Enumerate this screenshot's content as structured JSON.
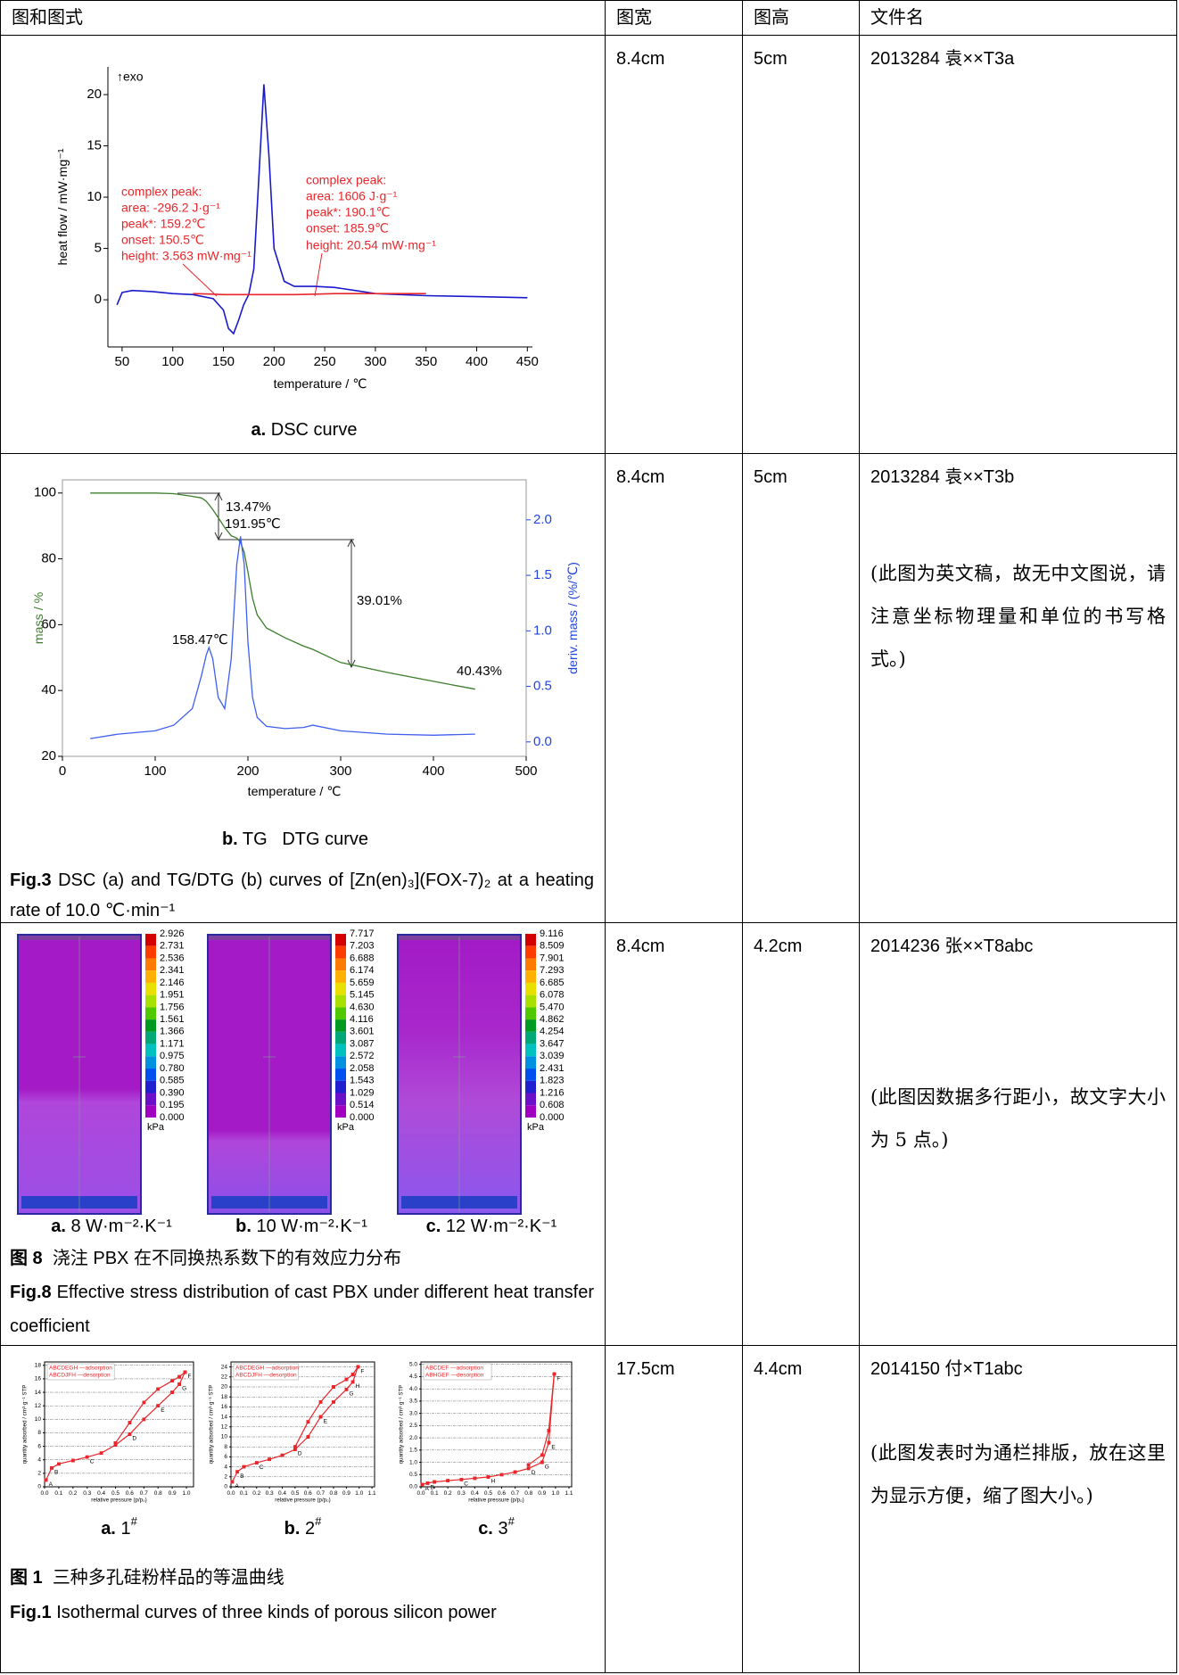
{
  "header": [
    "图和图式",
    "图宽",
    "图高",
    "文件名"
  ],
  "rows": [
    {
      "figure": {
        "type": "line",
        "xlabel": "temperature / ℃",
        "ylabel": "heat flow / mW·mg⁻¹",
        "xlim": [
          36,
          455
        ],
        "xticks": [
          50,
          100,
          150,
          200,
          250,
          300,
          350,
          400,
          450
        ],
        "ylim": [
          -4.6,
          22.7
        ],
        "yticks": [
          0,
          5,
          10,
          15,
          20
        ],
        "x": [
          45,
          50,
          60,
          80,
          100,
          120,
          140,
          150,
          155,
          160,
          165,
          170,
          175,
          180,
          185,
          190,
          195,
          200,
          210,
          220,
          240,
          260,
          280,
          300,
          350,
          400,
          450
        ],
        "series": [
          {
            "color": "#1a1acd",
            "values": [
              -0.5,
              0.7,
              0.9,
              0.8,
              0.6,
              0.5,
              0.1,
              -1,
              -2.8,
              -3.3,
              -2,
              -0.5,
              0.5,
              3,
              12,
              21,
              14,
              5,
              1.8,
              1.3,
              1.3,
              1.2,
              0.9,
              0.6,
              0.4,
              0.3,
              0.2
            ]
          },
          {
            "color": "#e8262b",
            "values": [
              null,
              null,
              null,
              null,
              null,
              0.6,
              0.55,
              0.5,
              0.5,
              0.5,
              0.5,
              0.5,
              0.5,
              0.5,
              0.5,
              0.5,
              0.5,
              0.5,
              0.5,
              0.5,
              0.55,
              0.6,
              0.6,
              0.6,
              0.6,
              null,
              null
            ]
          }
        ],
        "annotations": {
          "exo": "↑exo",
          "left": [
            "complex peak:",
            "area: -296.2 J·g⁻¹",
            "peak*: 159.2℃",
            "onset: 150.5℃",
            "height: 3.563 mW·mg⁻¹"
          ],
          "right": [
            "complex peak:",
            "area: 1606 J·g⁻¹",
            "peak*: 190.1℃",
            "onset: 185.9℃",
            "height: 20.54 mW·mg⁻¹"
          ]
        },
        "caption_label": "a.",
        "caption": "DSC curve"
      },
      "width": "8.4cm",
      "height": "5cm",
      "file": "2013284 袁××T3a"
    },
    {
      "figure": {
        "type": "line",
        "xlabel": "temperature / ℃",
        "ylabel": "mass / %",
        "y2label": "deriv. mass / (%/℃)",
        "xlim": [
          0,
          500
        ],
        "xticks": [
          0,
          100,
          200,
          300,
          400,
          500
        ],
        "ylim": [
          20,
          104
        ],
        "yticks": [
          20,
          40,
          60,
          80,
          100
        ],
        "y2lim": [
          -0.13,
          2.36
        ],
        "y2ticks": [
          {
            "value": 0,
            "label": "0.0"
          },
          0.5,
          {
            "value": 1,
            "label": "1.0"
          },
          1.5,
          {
            "value": 2,
            "label": "2.0"
          }
        ],
        "x": [
          30,
          60,
          100,
          120,
          140,
          150,
          155,
          158,
          162,
          168,
          175,
          182,
          188,
          192,
          196,
          200,
          205,
          210,
          220,
          240,
          260,
          270,
          300,
          350,
          400,
          445
        ],
        "series": [
          {
            "color": "#3c7d2c",
            "values": [
              100,
              100,
              100,
              99.8,
              99,
              98.5,
              97.5,
              96.5,
              95,
              92.5,
              89.5,
              87,
              86.3,
              85,
              82,
              76,
              68,
              63,
              59,
              56,
              53.5,
              52.5,
              48.5,
              45.5,
              42.8,
              40.4
            ]
          },
          {
            "color": "#3f5ff0",
            "axis": "y2",
            "values": [
              0.03,
              0.07,
              0.1,
              0.15,
              0.3,
              0.6,
              0.78,
              0.85,
              0.75,
              0.4,
              0.3,
              0.75,
              1.6,
              1.85,
              1.6,
              0.9,
              0.4,
              0.22,
              0.14,
              0.12,
              0.13,
              0.15,
              0.1,
              0.07,
              0.06,
              0.07
            ]
          }
        ],
        "annotations": [
          "13.47%",
          "191.95℃",
          "39.01%",
          "158.47℃",
          "40.43%"
        ],
        "caption_label": "b.",
        "caption": "TG   DTG curve"
      },
      "fig_caption": {
        "label": "Fig.3",
        "text": "DSC (a) and TG/DTG (b) curves of [Zn(en)₃](FOX-7)₂ at a heating rate of 10.0 ℃·min⁻¹"
      },
      "width": "8.4cm",
      "height": "5cm",
      "file": "2013284 袁××T3b",
      "note": "(此图为英文稿，故无中文图说，请注意坐标物理量和单位的书写格式。)"
    },
    {
      "figure": {
        "type": "contour",
        "colors": [
          "#d40000",
          "#ff3c00",
          "#ff7a00",
          "#ffb000",
          "#e8e000",
          "#a8e000",
          "#50c800",
          "#009a20",
          "#00a878",
          "#00c0c0",
          "#0090e0",
          "#0050f0",
          "#2020d0",
          "#6a10c8",
          "#a000c0"
        ],
        "panels": [
          {
            "labels": [
              "2.926",
              "2.731",
              "2.536",
              "2.341",
              "2.146",
              "1.951",
              "1.756",
              "1.561",
              "1.366",
              "1.171",
              "0.975",
              "0.780",
              "0.585",
              "0.390",
              "0.195",
              "0.000"
            ],
            "unit": "kPa",
            "caption_label": "a.",
            "caption": "8 W·m⁻²·K⁻¹"
          },
          {
            "labels": [
              "7.717",
              "7.203",
              "6.688",
              "6.174",
              "5.659",
              "5.145",
              "4.630",
              "4.116",
              "3.601",
              "3.087",
              "2.572",
              "2.058",
              "1.543",
              "1.029",
              "0.514",
              "0.000"
            ],
            "unit": "kPa",
            "caption_label": "b.",
            "caption": "10 W·m⁻²·K⁻¹"
          },
          {
            "labels": [
              "9.116",
              "8.509",
              "7.901",
              "7.293",
              "6.685",
              "6.078",
              "5.470",
              "4.862",
              "4.254",
              "3.647",
              "3.039",
              "2.431",
              "1.823",
              "1.216",
              "0.608",
              "0.000"
            ],
            "unit": "kPa",
            "caption_label": "c.",
            "caption": "12 W·m⁻²·K⁻¹"
          }
        ]
      },
      "cn_caption": {
        "label": "图 8",
        "text": "浇注 PBX 在不同换热系数下的有效应力分布"
      },
      "fig_caption": {
        "label": "Fig.8",
        "text": "Effective stress distribution of cast PBX under different heat transfer coefficient"
      },
      "width": "8.4cm",
      "height": "4.2cm",
      "file": "2014236 张××T8abc",
      "note": "(此图因数据多行距小，故文字大小为 5 点。)"
    },
    {
      "figure": {
        "charts": [
          {
            "type": "line",
            "grid": true,
            "xlabel": "relative pressure (p/p₀)",
            "ylabel": "quantity adsorbed / cm³·g⁻¹ STP",
            "xlim": [
              0,
              1.05
            ],
            "xticks": [
              {
                "value": 0,
                "label": "0.0"
              },
              0.1,
              0.2,
              0.3,
              0.4,
              0.5,
              0.6,
              0.7,
              0.8,
              0.9,
              {
                "value": 1,
                "label": "1.0"
              }
            ],
            "ylim": [
              0,
              18.5
            ],
            "yticks": [
              0,
              2,
              4,
              6,
              8,
              10,
              12,
              14,
              16,
              18
            ],
            "x": [
              0.01,
              0.05,
              0.1,
              0.2,
              0.3,
              0.4,
              0.5,
              0.6,
              0.7,
              0.8,
              0.9,
              0.95,
              0.99
            ],
            "series": [
              {
                "name": "ABCDEGH —adsorption",
                "color": "#e8262b",
                "values": [
                  1,
                  2.8,
                  3.4,
                  3.9,
                  4.4,
                  5,
                  6.2,
                  7.8,
                  10,
                  12,
                  14,
                  15.2,
                  17
                ]
              },
              {
                "name": "ABCDJFH —desorption",
                "color": "#e8262b",
                "values": [
                  null,
                  null,
                  null,
                  null,
                  null,
                  null,
                  6.5,
                  9.5,
                  12.5,
                  14.5,
                  15.7,
                  16.3,
                  17
                ]
              }
            ],
            "point_labels": [
              "A",
              "B",
              null,
              null,
              "C",
              null,
              null,
              "D",
              null,
              "E",
              null,
              "G",
              "F"
            ],
            "caption_label": "a.",
            "caption": "1",
            "caption_sup": "#"
          },
          {
            "type": "line",
            "grid": true,
            "xlabel": "relative pressure (p/p₀)",
            "ylabel": "quantity adsorbed / cm³·g⁻¹ STP",
            "xlim": [
              0,
              1.12
            ],
            "xticks": [
              {
                "value": 0,
                "label": "0.0"
              },
              0.1,
              0.2,
              0.3,
              0.4,
              0.5,
              0.6,
              0.7,
              0.8,
              0.9,
              {
                "value": 1,
                "label": "1.0"
              },
              1.1
            ],
            "ylim": [
              0,
              25
            ],
            "yticks": [
              0,
              2,
              4,
              6,
              8,
              10,
              12,
              14,
              16,
              18,
              20,
              22,
              24
            ],
            "x": [
              0.01,
              0.05,
              0.1,
              0.2,
              0.3,
              0.4,
              0.5,
              0.6,
              0.7,
              0.8,
              0.9,
              0.95,
              0.99
            ],
            "series": [
              {
                "name": "ABCDEGH —adsorption",
                "color": "#e8262b",
                "values": [
                  1,
                  3,
                  4,
                  4.8,
                  5.5,
                  6.3,
                  7.5,
                  10,
                  14,
                  17,
                  19.5,
                  21,
                  24
                ]
              },
              {
                "name": "ABCDJFH —desorption",
                "color": "#e8262b",
                "values": [
                  null,
                  null,
                  null,
                  null,
                  null,
                  null,
                  8,
                  13,
                  17,
                  20,
                  21.5,
                  22.5,
                  24
                ]
              }
            ],
            "point_labels": [
              "A",
              "B",
              null,
              "C",
              null,
              null,
              "D",
              null,
              "E",
              null,
              "G",
              "H",
              "F"
            ],
            "caption_label": "b.",
            "caption": "2",
            "caption_sup": "#"
          },
          {
            "type": "line",
            "grid": true,
            "xlabel": "relative pressure (p/p₀)",
            "ylabel": "quantity adsorbed / cm³·g⁻¹ STP",
            "xlim": [
              0,
              1.12
            ],
            "xticks": [
              {
                "value": 0,
                "label": "0.0"
              },
              0.1,
              0.2,
              0.3,
              0.4,
              0.5,
              0.6,
              0.7,
              0.8,
              0.9,
              {
                "value": 1,
                "label": "1.0"
              },
              1.1
            ],
            "ylim": [
              0,
              5.1
            ],
            "yticks": [
              {
                "value": 0,
                "label": "0.0"
              },
              0.5,
              {
                "value": 1,
                "label": "1.0"
              },
              1.5,
              {
                "value": 2,
                "label": "2.0"
              },
              2.5,
              {
                "value": 3,
                "label": "3.0"
              },
              3.5,
              {
                "value": 4,
                "label": "4.0"
              },
              4.5,
              {
                "value": 5,
                "label": "5.0"
              }
            ],
            "x": [
              0.01,
              0.05,
              0.1,
              0.2,
              0.3,
              0.4,
              0.5,
              0.6,
              0.7,
              0.8,
              0.9,
              0.95,
              0.99
            ],
            "series": [
              {
                "name": "ABCDEF —adsorption",
                "color": "#e8262b",
                "values": [
                  0.1,
                  0.15,
                  0.2,
                  0.25,
                  0.3,
                  0.35,
                  0.4,
                  0.5,
                  0.6,
                  0.75,
                  1,
                  1.8,
                  4.6
                ]
              },
              {
                "name": "ABHGEF —desorption",
                "color": "#e8262b",
                "values": [
                  null,
                  null,
                  null,
                  null,
                  null,
                  null,
                  null,
                  null,
                  null,
                  0.9,
                  1.3,
                  2.3,
                  4.6
                ]
              }
            ],
            "point_labels": [
              "A",
              "B",
              null,
              null,
              "C",
              null,
              "H",
              null,
              null,
              "D",
              "G",
              "E",
              "F"
            ],
            "caption_label": "c.",
            "caption": "3",
            "caption_sup": "#"
          }
        ]
      },
      "cn_caption": {
        "label": "图 1",
        "text": "三种多孔硅粉样品的等温曲线"
      },
      "fig_caption": {
        "label": "Fig.1",
        "text": "Isothermal curves of three kinds of porous silicon power"
      },
      "width": "17.5cm",
      "height": "4.4cm",
      "file": "2014150 付×T1abc",
      "note": "(此图发表时为通栏排版，放在这里为显示方便，缩了图大小。)"
    }
  ]
}
